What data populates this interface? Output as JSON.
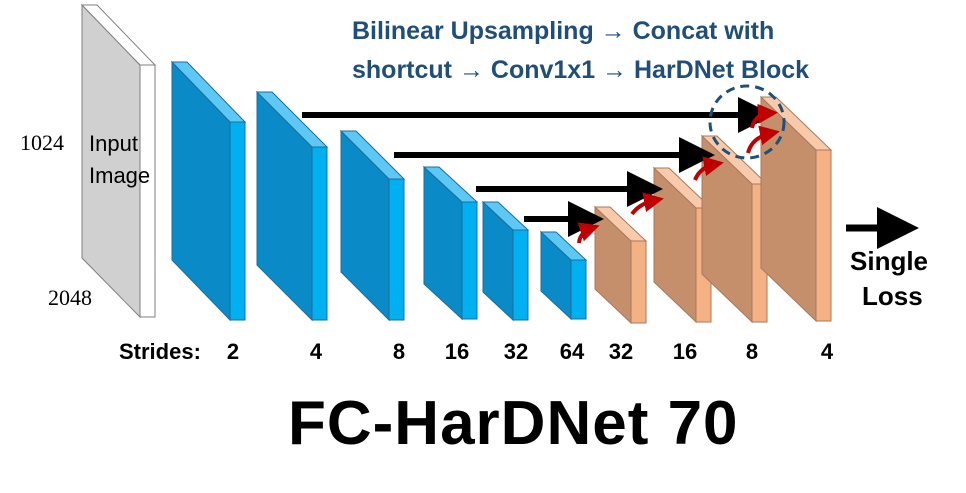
{
  "caption": {
    "line1": "Bilinear Upsampling → Concat with",
    "line2": "shortcut → Conv1x1 → HarDNet Block"
  },
  "input": {
    "width_label": "1024",
    "height_label": "2048",
    "label_line1": "Input",
    "label_line2": "Image"
  },
  "strides": {
    "label": "Strides:",
    "values": [
      "2",
      "4",
      "8",
      "16",
      "32",
      "64",
      "32",
      "16",
      "8",
      "4"
    ]
  },
  "loss": {
    "line1": "Single",
    "line2": "Loss"
  },
  "title": "FC-HarDNet 70",
  "colors": {
    "encoder_front": "#0a8ac6",
    "encoder_top": "#5ec8f5",
    "encoder_side": "#00b0f0",
    "decoder_front": "#c68f6c",
    "decoder_top": "#f7caac",
    "decoder_side": "#f4b183",
    "input_face": "#d0d0d0",
    "skip_arrow": "#000000",
    "up_arrow": "#c00000",
    "caption_text": "#1f4e79",
    "highlight_circle": "#1f4e79"
  }
}
